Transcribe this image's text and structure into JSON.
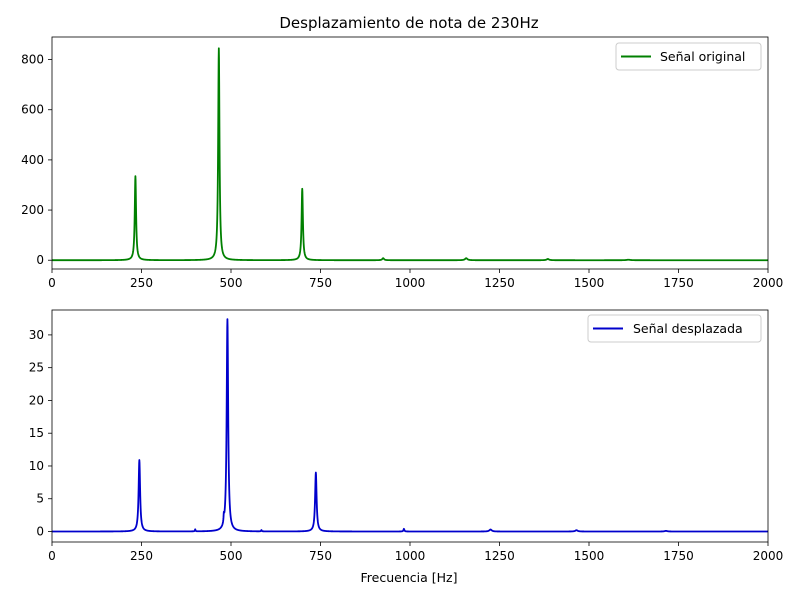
{
  "chart_data": [
    {
      "type": "line",
      "title": "Desplazamiento de nota de 230Hz",
      "xlabel": "",
      "ylabel": "",
      "xlim": [
        0,
        2000
      ],
      "ylim": [
        -35,
        890
      ],
      "xticks": [
        0,
        250,
        500,
        750,
        1000,
        1250,
        1500,
        1750,
        2000
      ],
      "yticks": [
        0,
        200,
        400,
        600,
        800
      ],
      "grid": false,
      "legend_position": "upper right",
      "series": [
        {
          "name": "Señal original",
          "color": "#008000",
          "peaks": [
            {
              "x": 233,
              "y": 335,
              "w": 2.2
            },
            {
              "x": 466,
              "y": 845,
              "w": 2.2
            },
            {
              "x": 699,
              "y": 285,
              "w": 2.2
            },
            {
              "x": 925,
              "y": 8,
              "w": 3
            },
            {
              "x": 1157,
              "y": 8,
              "w": 4
            },
            {
              "x": 1385,
              "y": 5,
              "w": 4
            },
            {
              "x": 1610,
              "y": 2,
              "w": 6
            }
          ]
        }
      ]
    },
    {
      "type": "line",
      "title": "",
      "xlabel": "Frecuencia [Hz]",
      "ylabel": "",
      "xlim": [
        0,
        2000
      ],
      "ylim": [
        -1.6,
        33.8
      ],
      "xticks": [
        0,
        250,
        500,
        750,
        1000,
        1250,
        1500,
        1750,
        2000
      ],
      "yticks": [
        0,
        5,
        10,
        15,
        20,
        25,
        30
      ],
      "grid": false,
      "legend_position": "upper right",
      "series": [
        {
          "name": "Señal desplazada",
          "color": "#0000cc",
          "peaks": [
            {
              "x": 244,
              "y": 10.9,
              "w": 2.5
            },
            {
              "x": 490,
              "y": 32.4,
              "w": 2.5
            },
            {
              "x": 737,
              "y": 9.0,
              "w": 2.5
            },
            {
              "x": 400,
              "y": 0.3,
              "w": 1
            },
            {
              "x": 480,
              "y": 1.1,
              "w": 1
            },
            {
              "x": 585,
              "y": 0.2,
              "w": 1
            },
            {
              "x": 983,
              "y": 0.4,
              "w": 1.5
            },
            {
              "x": 1225,
              "y": 0.3,
              "w": 4
            },
            {
              "x": 1465,
              "y": 0.2,
              "w": 4
            },
            {
              "x": 1715,
              "y": 0.1,
              "w": 4
            }
          ]
        }
      ]
    }
  ]
}
